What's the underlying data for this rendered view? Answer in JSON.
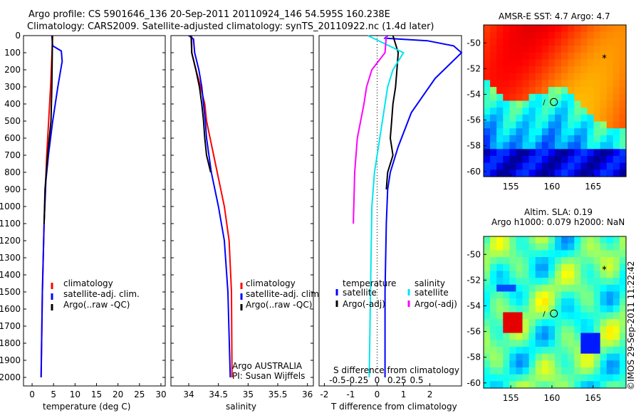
{
  "header": {
    "line1": "Argo profile: CS 5901646_136 20-Sep-2011 20110924_146 54.595S 160.238E",
    "line2": "Climatology: CARS2009. Satellite-adjusted climatology: synTS_20110922.nc (1.4d later)"
  },
  "colors": {
    "red": "#ff0000",
    "blue": "#0000ff",
    "black": "#000000",
    "cyan": "#00e5ee",
    "magenta": "#ff00ff"
  },
  "chart_data": [
    {
      "type": "line",
      "id": "temperature",
      "xlabel": "temperature (deg C)",
      "xlim": [
        -2,
        31
      ],
      "ylim": [
        2050,
        0
      ],
      "xticks": [
        0,
        5,
        10,
        15,
        20,
        25,
        30
      ],
      "yticks": [
        0,
        100,
        200,
        300,
        400,
        500,
        600,
        700,
        800,
        900,
        1000,
        1100,
        1200,
        1300,
        1400,
        1500,
        1600,
        1700,
        1800,
        1900,
        2000
      ],
      "legend": [
        "climatology",
        "satellite-adj. clim.",
        "Argo(..raw -QC)"
      ],
      "series": [
        {
          "name": "climatology",
          "color": "red",
          "depth": [
            0,
            300,
            700,
            1100,
            1500,
            2000
          ],
          "x": [
            4.8,
            4.3,
            3.4,
            2.8,
            2.4,
            2.1
          ]
        },
        {
          "name": "satellite-adj. clim.",
          "color": "blue",
          "depth": [
            0,
            60,
            90,
            150,
            300,
            500,
            700,
            850,
            1100,
            1500,
            2000
          ],
          "x": [
            4.6,
            4.8,
            6.8,
            7.0,
            6.0,
            4.8,
            3.8,
            3.2,
            2.8,
            2.4,
            2.1
          ]
        },
        {
          "name": "Argo(..raw -QC)",
          "color": "black",
          "depth": [
            0,
            100,
            300,
            500,
            700,
            900,
            1100
          ],
          "x": [
            4.7,
            4.7,
            4.6,
            4.4,
            3.6,
            3.0,
            2.8
          ]
        }
      ]
    },
    {
      "type": "line",
      "id": "salinity",
      "xlabel": "salinity",
      "xlim": [
        33.7,
        36.1
      ],
      "ylim": [
        2050,
        0
      ],
      "xticks": [
        34,
        34.5,
        35,
        35.5,
        36
      ],
      "legend": [
        "climatology",
        "satellite-adj. clim.",
        "Argo(..raw -QC)"
      ],
      "annotation": [
        "Argo AUSTRALIA",
        "PI: Susan Wijffels"
      ],
      "series": [
        {
          "name": "climatology",
          "color": "red",
          "depth": [
            0,
            100,
            200,
            300,
            400,
            500,
            600,
            800,
            1000,
            1200,
            1500,
            2000
          ],
          "x": [
            34.05,
            34.05,
            34.12,
            34.2,
            34.27,
            34.3,
            34.36,
            34.48,
            34.6,
            34.68,
            34.72,
            34.73
          ]
        },
        {
          "name": "satellite-adj. clim.",
          "color": "blue",
          "depth": [
            0,
            20,
            100,
            200,
            300,
            400,
            500,
            600,
            800,
            1000,
            1200,
            1500,
            2000
          ],
          "x": [
            34.0,
            34.08,
            34.1,
            34.17,
            34.22,
            34.25,
            34.28,
            34.3,
            34.38,
            34.5,
            34.6,
            34.66,
            34.7
          ]
        },
        {
          "name": "Argo(..raw -QC)",
          "color": "black",
          "depth": [
            0,
            100,
            200,
            300,
            400,
            500,
            600,
            700,
            800
          ],
          "x": [
            34.04,
            34.05,
            34.12,
            34.18,
            34.22,
            34.25,
            34.27,
            34.3,
            34.37
          ]
        }
      ]
    },
    {
      "type": "line",
      "id": "difference",
      "xlabel": "T difference from climatology",
      "xlabel2": "S difference from climatology",
      "xlim": [
        -2.2,
        3.2
      ],
      "ylim": [
        2050,
        0
      ],
      "xticks": [
        -2,
        -1,
        0,
        1,
        2
      ],
      "xticks2": [
        "-0.5",
        "-0.25",
        "0",
        "0.25",
        "0.5"
      ],
      "legend_left": {
        "title": "temperature",
        "items": [
          "satellite",
          "Argo(-adj)"
        ]
      },
      "legend_right": {
        "title": "salinity",
        "items": [
          "satellite",
          "Argo(-adj)"
        ]
      },
      "series": [
        {
          "name": "temperature satellite",
          "color": "blue",
          "depth": [
            0,
            15,
            30,
            60,
            100,
            250,
            450,
            650,
            800,
            900,
            1100,
            1500,
            2000
          ],
          "x": [
            0.4,
            0.3,
            1.9,
            2.9,
            3.2,
            2.2,
            1.3,
            0.8,
            0.5,
            0.4,
            0.35,
            0.3,
            0.3
          ]
        },
        {
          "name": "temperature Argo(-adj)",
          "color": "black",
          "depth": [
            0,
            100,
            200,
            300,
            400,
            500,
            600,
            700,
            800,
            900
          ],
          "x": [
            0.6,
            0.8,
            0.75,
            0.7,
            0.6,
            0.55,
            0.5,
            0.6,
            0.4,
            0.35
          ]
        },
        {
          "name": "salinity satellite",
          "color": "cyan",
          "depth": [
            0,
            100,
            200,
            300,
            400,
            600,
            800,
            1000,
            1500,
            2000
          ],
          "x": [
            -0.35,
            1.0,
            0.6,
            0.4,
            0.3,
            0.1,
            -0.1,
            -0.2,
            -0.25,
            -0.3
          ]
        },
        {
          "name": "salinity Argo(-adj)",
          "color": "magenta",
          "depth": [
            0,
            100,
            200,
            300,
            400,
            600,
            800,
            1100
          ],
          "x": [
            0.35,
            0.3,
            -0.2,
            -0.4,
            -0.5,
            -0.75,
            -0.85,
            -0.9
          ]
        }
      ]
    },
    {
      "type": "heatmap",
      "id": "sst_map",
      "title": "AMSR-E SST: 4.7  Argo: 4.7",
      "xticks": [
        155,
        160,
        165
      ],
      "yticks": [
        -50,
        -52,
        -54,
        -56,
        -58,
        -60
      ],
      "xlim": [
        151.7,
        169
      ],
      "ylim": [
        -60.4,
        -48.6
      ],
      "marker": {
        "lon": 160.238,
        "lat": -54.595
      }
    },
    {
      "type": "heatmap",
      "id": "sla_map",
      "title": "Altim. SLA: 0.19",
      "subtitle": "Argo h1000: 0.079  h2000: NaN",
      "xticks": [
        155,
        160,
        165
      ],
      "yticks": [
        -50,
        -52,
        -54,
        -56,
        -58,
        -60
      ],
      "xlim": [
        151.7,
        169
      ],
      "ylim": [
        -60.4,
        -48.6
      ],
      "marker": {
        "lon": 160.238,
        "lat": -54.595
      }
    }
  ],
  "footer": {
    "stamp": "©IMOS 29-Sep-2011 11:22:42"
  }
}
